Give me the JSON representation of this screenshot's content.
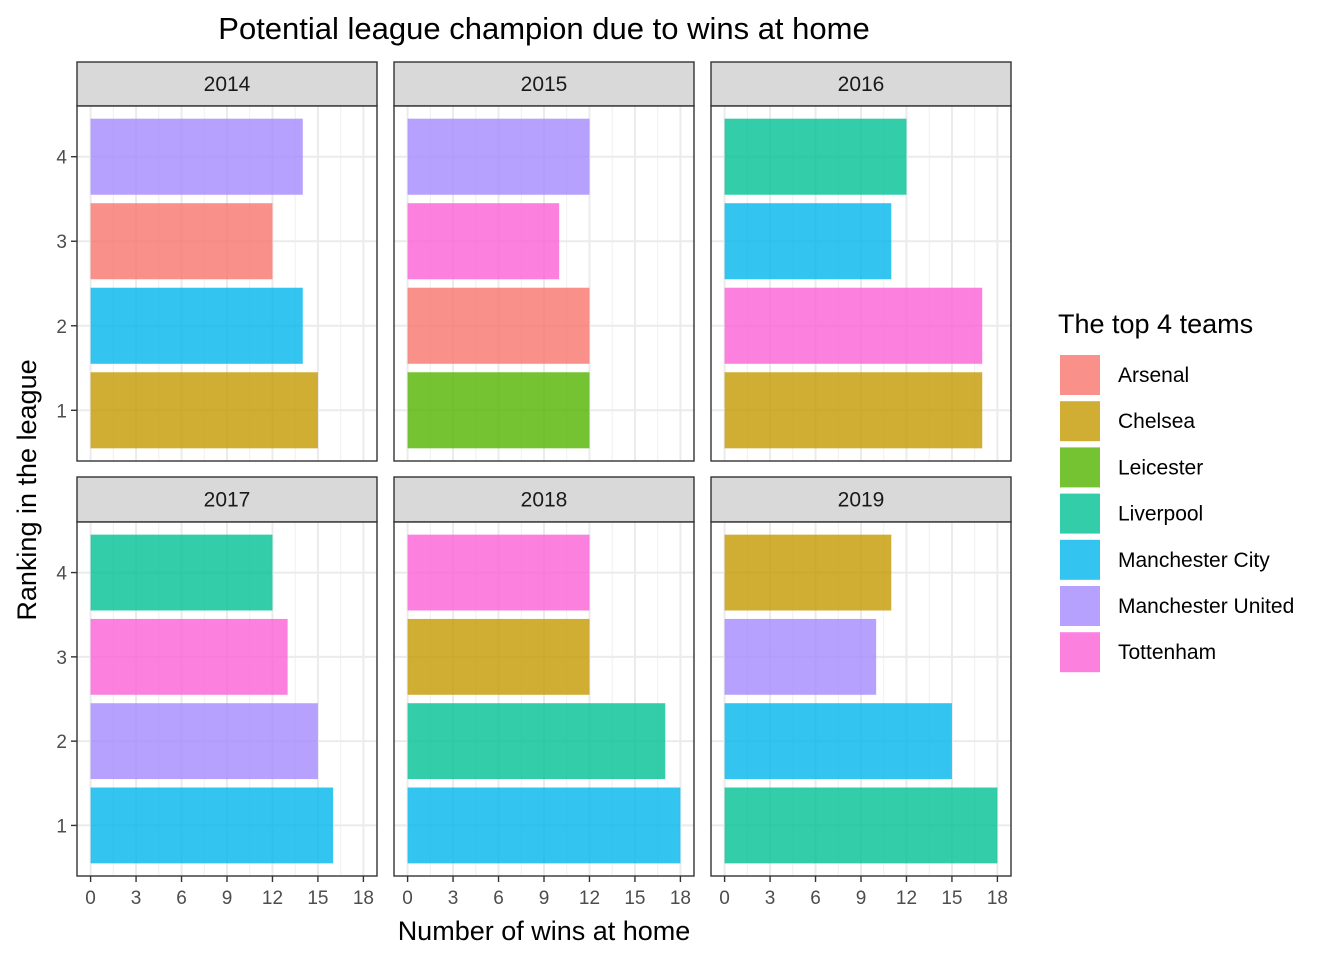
{
  "chart_data": {
    "type": "bar",
    "orientation": "horizontal",
    "title": "Potential league champion due to wins at home",
    "xlabel": "Number of wins at home",
    "ylabel": "Ranking in the league",
    "xlim": [
      0,
      18
    ],
    "x_ticks": [
      "0",
      "3",
      "6",
      "9",
      "12",
      "15",
      "18"
    ],
    "y_categories": [
      "1",
      "2",
      "3",
      "4"
    ],
    "grid": true,
    "legend": {
      "title": "The top 4 teams",
      "position": "right",
      "entries": [
        {
          "name": "Arsenal",
          "color": "#F8766D"
        },
        {
          "name": "Chelsea",
          "color": "#C49A00"
        },
        {
          "name": "Leicester",
          "color": "#53B400"
        },
        {
          "name": "Liverpool",
          "color": "#00C094"
        },
        {
          "name": "Manchester City",
          "color": "#00B6EB"
        },
        {
          "name": "Manchester United",
          "color": "#A58AFF"
        },
        {
          "name": "Tottenham",
          "color": "#FB61D7"
        }
      ]
    },
    "panels": [
      {
        "label": "2014",
        "bars": [
          {
            "rank": "1",
            "team": "Chelsea",
            "wins": 15
          },
          {
            "rank": "2",
            "team": "Manchester City",
            "wins": 14
          },
          {
            "rank": "3",
            "team": "Arsenal",
            "wins": 12
          },
          {
            "rank": "4",
            "team": "Manchester United",
            "wins": 14
          }
        ]
      },
      {
        "label": "2015",
        "bars": [
          {
            "rank": "1",
            "team": "Leicester",
            "wins": 12
          },
          {
            "rank": "2",
            "team": "Arsenal",
            "wins": 12
          },
          {
            "rank": "3",
            "team": "Tottenham",
            "wins": 10
          },
          {
            "rank": "4",
            "team": "Manchester United",
            "wins": 12
          }
        ]
      },
      {
        "label": "2016",
        "bars": [
          {
            "rank": "1",
            "team": "Chelsea",
            "wins": 17
          },
          {
            "rank": "2",
            "team": "Tottenham",
            "wins": 17
          },
          {
            "rank": "3",
            "team": "Manchester City",
            "wins": 11
          },
          {
            "rank": "4",
            "team": "Liverpool",
            "wins": 12
          }
        ]
      },
      {
        "label": "2017",
        "bars": [
          {
            "rank": "1",
            "team": "Manchester City",
            "wins": 16
          },
          {
            "rank": "2",
            "team": "Manchester United",
            "wins": 15
          },
          {
            "rank": "3",
            "team": "Tottenham",
            "wins": 13
          },
          {
            "rank": "4",
            "team": "Liverpool",
            "wins": 12
          }
        ]
      },
      {
        "label": "2018",
        "bars": [
          {
            "rank": "1",
            "team": "Manchester City",
            "wins": 18
          },
          {
            "rank": "2",
            "team": "Liverpool",
            "wins": 17
          },
          {
            "rank": "3",
            "team": "Chelsea",
            "wins": 12
          },
          {
            "rank": "4",
            "team": "Tottenham",
            "wins": 12
          }
        ]
      },
      {
        "label": "2019",
        "bars": [
          {
            "rank": "1",
            "team": "Liverpool",
            "wins": 18
          },
          {
            "rank": "2",
            "team": "Manchester City",
            "wins": 15
          },
          {
            "rank": "3",
            "team": "Manchester United",
            "wins": 10
          },
          {
            "rank": "4",
            "team": "Chelsea",
            "wins": 11
          }
        ]
      }
    ]
  }
}
